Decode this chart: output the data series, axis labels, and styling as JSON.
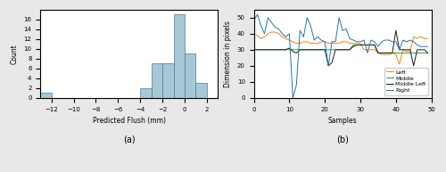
{
  "hist_bin_edges": [
    -13,
    -12,
    -11,
    -10,
    -9,
    -8,
    -7,
    -6,
    -5,
    -4,
    -3,
    -2,
    -1,
    0,
    1,
    2
  ],
  "hist_counts": [
    1,
    0,
    0,
    0,
    0,
    0,
    0,
    0,
    0,
    2,
    7,
    7,
    17,
    9,
    3
  ],
  "hist_xlabel": "Predicted Flush (mm)",
  "hist_ylabel": "Count",
  "hist_label": "(a)",
  "hist_color": "#a8c8d8",
  "hist_edgecolor": "#4a7a9a",
  "line_xlabel": "Samples",
  "line_ylabel": "Dimension in pixels",
  "line_label": "(b)",
  "line_colors": {
    "Left": "#ff7f0e",
    "Middle": "#2ca02c",
    "Middle Left": "#1a1a1a",
    "Right": "#1f77b4"
  },
  "left_data": [
    40,
    39,
    37,
    38,
    40,
    41,
    41,
    40,
    38,
    37,
    36,
    35,
    34,
    34,
    35,
    35,
    34,
    34,
    34,
    35,
    35,
    34,
    34,
    34,
    34,
    35,
    35,
    34,
    34,
    34,
    34,
    30,
    30,
    30,
    30,
    28,
    27,
    27,
    27,
    28,
    27,
    21,
    30,
    29,
    29,
    38,
    37,
    38,
    37,
    37
  ],
  "middle_data": [
    30,
    30,
    30,
    30,
    30,
    30,
    30,
    30,
    30,
    30,
    30,
    30,
    30,
    30,
    30,
    30,
    30,
    30,
    30,
    30,
    30,
    30,
    30,
    30,
    30,
    30,
    30,
    30,
    33,
    33,
    33,
    33,
    33,
    33,
    33,
    28,
    28,
    28,
    28,
    28,
    28,
    28,
    28,
    28,
    28,
    28,
    28,
    28,
    28,
    28
  ],
  "middle_left_data": [
    30,
    30,
    30,
    30,
    30,
    30,
    30,
    30,
    30,
    30,
    31,
    29,
    28,
    30,
    30,
    30,
    30,
    30,
    30,
    30,
    30,
    20,
    22,
    30,
    30,
    30,
    30,
    30,
    32,
    33,
    33,
    33,
    33,
    33,
    33,
    28,
    28,
    28,
    28,
    28,
    42,
    30,
    30,
    30,
    30,
    20,
    30,
    30,
    30,
    28
  ],
  "right_data": [
    48,
    52,
    45,
    40,
    50,
    47,
    44,
    43,
    40,
    38,
    40,
    0,
    8,
    42,
    38,
    50,
    45,
    36,
    38,
    36,
    35,
    20,
    35,
    35,
    50,
    42,
    43,
    37,
    36,
    35,
    35,
    36,
    28,
    36,
    35,
    32,
    35,
    36,
    36,
    35,
    35,
    30,
    36,
    35,
    36,
    35,
    33,
    32,
    32,
    32
  ],
  "xlim_line": [
    0,
    50
  ],
  "ylim_line": [
    0,
    55
  ],
  "xlim_hist": [
    -13,
    3
  ],
  "ylim_hist": [
    0,
    18
  ],
  "fig_facecolor": "#e8e8e8",
  "ax_facecolor": "#ffffff"
}
